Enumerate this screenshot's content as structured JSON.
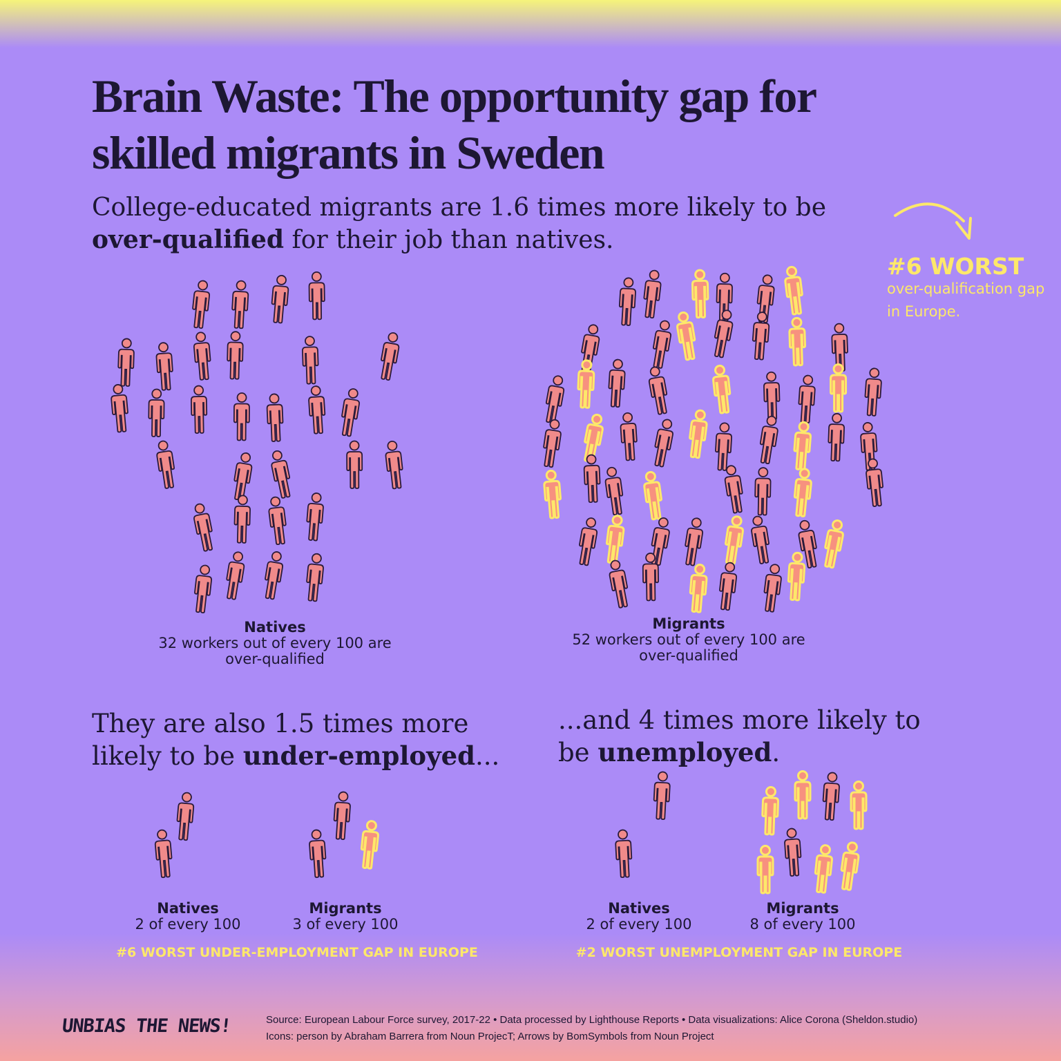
{
  "header": {
    "title": "Brain Waste: The opportunity gap for skilled migrants in Sweden",
    "subtitle": {
      "line1": "College-educated migrants are 1.6 times more likely to be",
      "emphasis": "over-qualified",
      "rest": " for their job than natives."
    }
  },
  "callout": {
    "rank": "#6 WORST",
    "text": "over-qualification gap in Europe."
  },
  "overqualification": {
    "groups": [
      {
        "name": "Natives",
        "text": "32 workers out of every 100 are over-qualified"
      },
      {
        "name": "Migrants",
        "text": "52 workers out of every 100 are over-qualified"
      }
    ]
  },
  "underemployment": {
    "heading": {
      "line1": "They are also 1.5 times more",
      "before": "likely to be ",
      "emphasis": "under-employed",
      "after": "..."
    },
    "groups": [
      {
        "name": "Natives",
        "text": "2 of every 100"
      },
      {
        "name": "Migrants",
        "text": "3 of every 100"
      }
    ],
    "note": "#6 WORST UNDER-EMPLOYMENT GAP IN EUROPE"
  },
  "unemployment": {
    "heading": {
      "line1": "...and 4 times more likely to",
      "before": "be ",
      "emphasis": "unemployed",
      "after": "."
    },
    "groups": [
      {
        "name": "Natives",
        "text": "2 of every 100"
      },
      {
        "name": "Migrants",
        "text": "8 of every 100"
      }
    ],
    "note": "#2 WORST UNEMPLOYMENT GAP IN EUROPE"
  },
  "footer": {
    "logo": "UNBIAS THE NEWS!",
    "source": "Source:  European Labour Force survey, 2017-22 • Data processed by Lighthouse Reports • Data visualizations: Alice Corona (Sheldon.studio)",
    "credits": "Icons: person by Abraham Barrera from Noun ProjecT; Arrows by BomSymbols from Noun Project"
  }
}
